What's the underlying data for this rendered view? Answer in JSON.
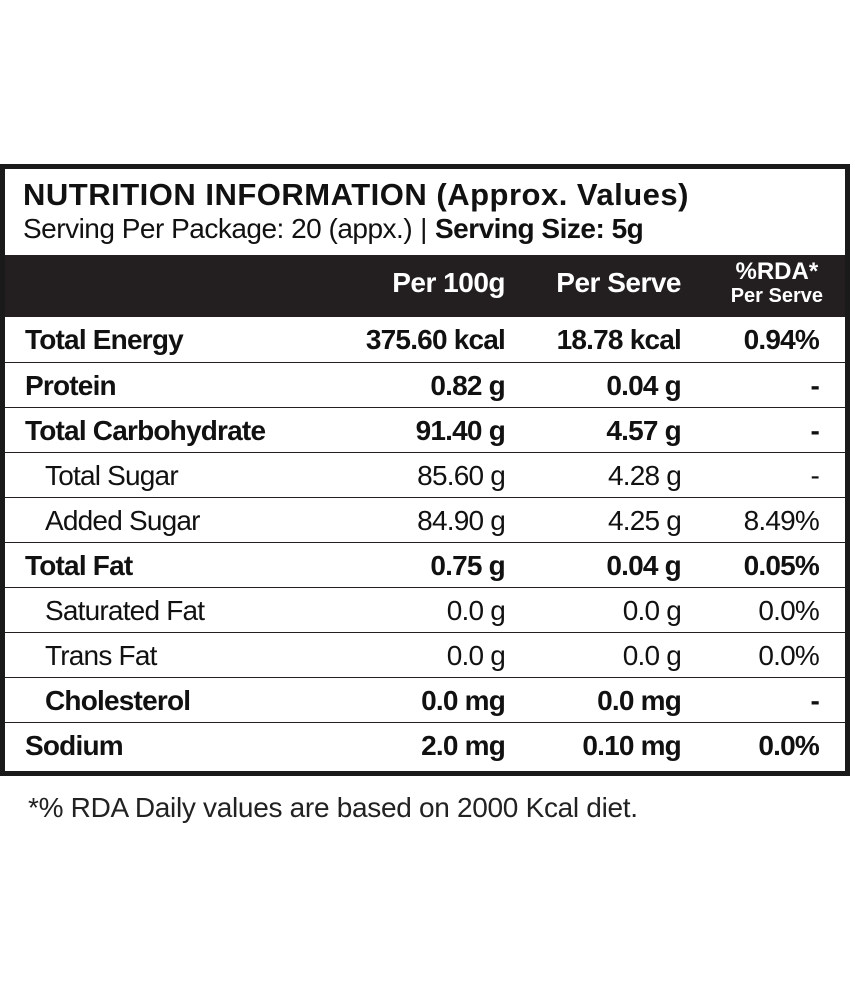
{
  "label": {
    "title": "NUTRITION INFORMATION (Approx. Values)",
    "serving_per_package": "Serving Per Package: 20 (appx.)",
    "separator": "|",
    "serving_size": "Serving Size: 5g"
  },
  "header": {
    "per_100g": "Per 100g",
    "per_serve": "Per Serve",
    "rda": "%RDA*",
    "rda_sub": "Per Serve"
  },
  "rows": [
    {
      "name": "Total Energy",
      "per_100g": "375.60 kcal",
      "per_serve": "18.78 kcal",
      "rda": "0.94%"
    },
    {
      "name": "Protein",
      "per_100g": "0.82 g",
      "per_serve": "0.04 g",
      "rda": "-"
    },
    {
      "name": "Total Carbohydrate",
      "per_100g": "91.40 g",
      "per_serve": "4.57 g",
      "rda": "-"
    },
    {
      "name": "Total Sugar",
      "per_100g": "85.60 g",
      "per_serve": "4.28 g",
      "rda": "-"
    },
    {
      "name": "Added Sugar",
      "per_100g": "84.90 g",
      "per_serve": "4.25 g",
      "rda": "8.49%"
    },
    {
      "name": "Total Fat",
      "per_100g": "0.75 g",
      "per_serve": "0.04 g",
      "rda": "0.05%"
    },
    {
      "name": "Saturated Fat",
      "per_100g": "0.0 g",
      "per_serve": "0.0 g",
      "rda": "0.0%"
    },
    {
      "name": "Trans Fat",
      "per_100g": "0.0 g",
      "per_serve": "0.0 g",
      "rda": "0.0%"
    },
    {
      "name": "Cholesterol",
      "per_100g": "0.0 mg",
      "per_serve": "0.0 mg",
      "rda": "-"
    },
    {
      "name": "Sodium",
      "per_100g": "2.0 mg",
      "per_serve": "0.10 mg",
      "rda": "0.0%"
    }
  ],
  "footnote": "*% RDA Daily values are based on 2000 Kcal diet."
}
